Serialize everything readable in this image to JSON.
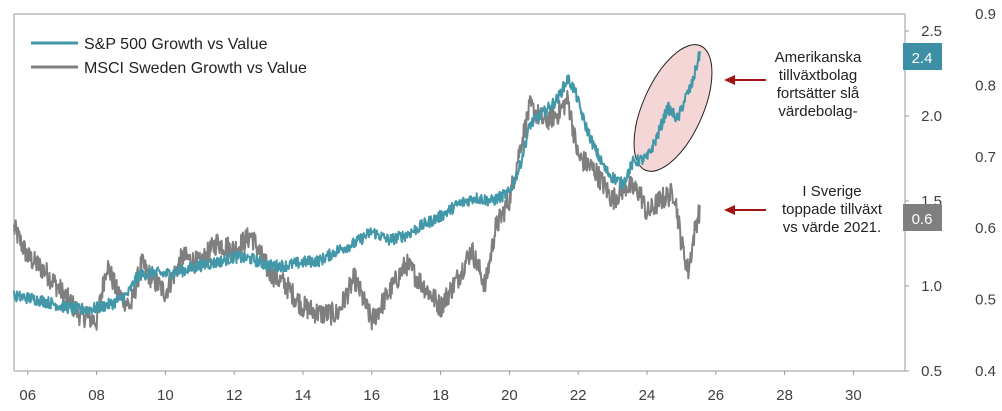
{
  "chart_data": {
    "type": "line",
    "title": "",
    "xlabel": "",
    "ylabel": "",
    "x_tick_labels": [
      "06",
      "08",
      "10",
      "12",
      "14",
      "16",
      "18",
      "20",
      "22",
      "24",
      "26",
      "28",
      "30"
    ],
    "xlim": [
      2005.6,
      2031.5
    ],
    "y_left": {
      "lim": [
        0.5,
        2.6
      ],
      "ticks": [
        "0.5",
        "1.0",
        "1.5",
        "2.0",
        "2.5"
      ]
    },
    "y_right": {
      "lim": [
        0.4,
        0.9
      ],
      "ticks": [
        "0.4",
        "0.5",
        "0.6",
        "0.7",
        "0.8",
        "0.9"
      ]
    },
    "legend_position": "top-left",
    "grid": false,
    "series": [
      {
        "name": "S&P 500 Growth vs Value",
        "color": "#4297A8",
        "axis": "left",
        "points": [
          [
            2005.6,
            0.94
          ],
          [
            2006.0,
            0.93
          ],
          [
            2006.5,
            0.91
          ],
          [
            2007.0,
            0.88
          ],
          [
            2007.5,
            0.86
          ],
          [
            2008.0,
            0.87
          ],
          [
            2008.5,
            0.9
          ],
          [
            2008.9,
            0.95
          ],
          [
            2009.2,
            1.06
          ],
          [
            2009.6,
            1.08
          ],
          [
            2010.0,
            1.07
          ],
          [
            2010.5,
            1.09
          ],
          [
            2011.0,
            1.12
          ],
          [
            2011.5,
            1.14
          ],
          [
            2012.0,
            1.17
          ],
          [
            2012.5,
            1.16
          ],
          [
            2013.0,
            1.12
          ],
          [
            2013.5,
            1.12
          ],
          [
            2014.0,
            1.14
          ],
          [
            2014.5,
            1.15
          ],
          [
            2015.0,
            1.21
          ],
          [
            2015.5,
            1.25
          ],
          [
            2016.0,
            1.32
          ],
          [
            2016.5,
            1.27
          ],
          [
            2017.0,
            1.3
          ],
          [
            2017.5,
            1.36
          ],
          [
            2018.0,
            1.41
          ],
          [
            2018.5,
            1.48
          ],
          [
            2019.0,
            1.52
          ],
          [
            2019.5,
            1.5
          ],
          [
            2020.0,
            1.55
          ],
          [
            2020.3,
            1.7
          ],
          [
            2020.6,
            1.95
          ],
          [
            2021.0,
            2.02
          ],
          [
            2021.4,
            2.1
          ],
          [
            2021.7,
            2.22
          ],
          [
            2021.9,
            2.15
          ],
          [
            2022.2,
            1.95
          ],
          [
            2022.5,
            1.8
          ],
          [
            2022.8,
            1.68
          ],
          [
            2023.0,
            1.64
          ],
          [
            2023.3,
            1.6
          ],
          [
            2023.6,
            1.73
          ],
          [
            2024.0,
            1.75
          ],
          [
            2024.3,
            1.88
          ],
          [
            2024.6,
            2.05
          ],
          [
            2024.9,
            1.98
          ],
          [
            2025.1,
            2.1
          ],
          [
            2025.3,
            2.18
          ],
          [
            2025.55,
            2.38
          ]
        ]
      },
      {
        "name": "MSCI Sweden Growth vs Value",
        "color": "#7F7F7F",
        "axis": "right",
        "points": [
          [
            2005.6,
            0.6
          ],
          [
            2006.0,
            0.56
          ],
          [
            2006.5,
            0.54
          ],
          [
            2007.0,
            0.51
          ],
          [
            2007.5,
            0.48
          ],
          [
            2008.0,
            0.47
          ],
          [
            2008.3,
            0.55
          ],
          [
            2008.6,
            0.51
          ],
          [
            2009.0,
            0.49
          ],
          [
            2009.3,
            0.55
          ],
          [
            2009.6,
            0.53
          ],
          [
            2010.0,
            0.51
          ],
          [
            2010.5,
            0.56
          ],
          [
            2011.0,
            0.55
          ],
          [
            2011.5,
            0.58
          ],
          [
            2012.0,
            0.57
          ],
          [
            2012.5,
            0.59
          ],
          [
            2013.0,
            0.54
          ],
          [
            2013.5,
            0.52
          ],
          [
            2014.0,
            0.49
          ],
          [
            2014.5,
            0.48
          ],
          [
            2015.0,
            0.48
          ],
          [
            2015.5,
            0.53
          ],
          [
            2016.0,
            0.47
          ],
          [
            2016.5,
            0.51
          ],
          [
            2017.0,
            0.55
          ],
          [
            2017.5,
            0.52
          ],
          [
            2018.0,
            0.49
          ],
          [
            2018.5,
            0.53
          ],
          [
            2018.9,
            0.57
          ],
          [
            2019.3,
            0.52
          ],
          [
            2019.6,
            0.6
          ],
          [
            2020.0,
            0.64
          ],
          [
            2020.3,
            0.71
          ],
          [
            2020.6,
            0.77
          ],
          [
            2021.0,
            0.75
          ],
          [
            2021.4,
            0.76
          ],
          [
            2021.7,
            0.78
          ],
          [
            2022.0,
            0.7
          ],
          [
            2022.5,
            0.68
          ],
          [
            2023.0,
            0.64
          ],
          [
            2023.4,
            0.66
          ],
          [
            2023.8,
            0.65
          ],
          [
            2024.0,
            0.62
          ],
          [
            2024.4,
            0.64
          ],
          [
            2024.8,
            0.65
          ],
          [
            2025.0,
            0.58
          ],
          [
            2025.2,
            0.54
          ],
          [
            2025.4,
            0.6
          ],
          [
            2025.55,
            0.63
          ]
        ]
      }
    ],
    "end_labels": [
      {
        "series": 0,
        "text": "2.4",
        "color": "#3C8FA4"
      },
      {
        "series": 1,
        "text": "0.6",
        "color": "#7F7F7F"
      }
    ],
    "annotations": [
      {
        "lines": [
          "Amerikanska",
          "tillväxtbolag",
          "fortsätter slå",
          "värdebolag-"
        ]
      },
      {
        "lines": [
          "I Sverige",
          "toppade tillväxt",
          "vs värde 2021."
        ]
      }
    ],
    "arrow_color": "#A31515",
    "highlight_ellipse": {
      "fill": "#F4D6D6",
      "stroke": "#222222"
    }
  }
}
